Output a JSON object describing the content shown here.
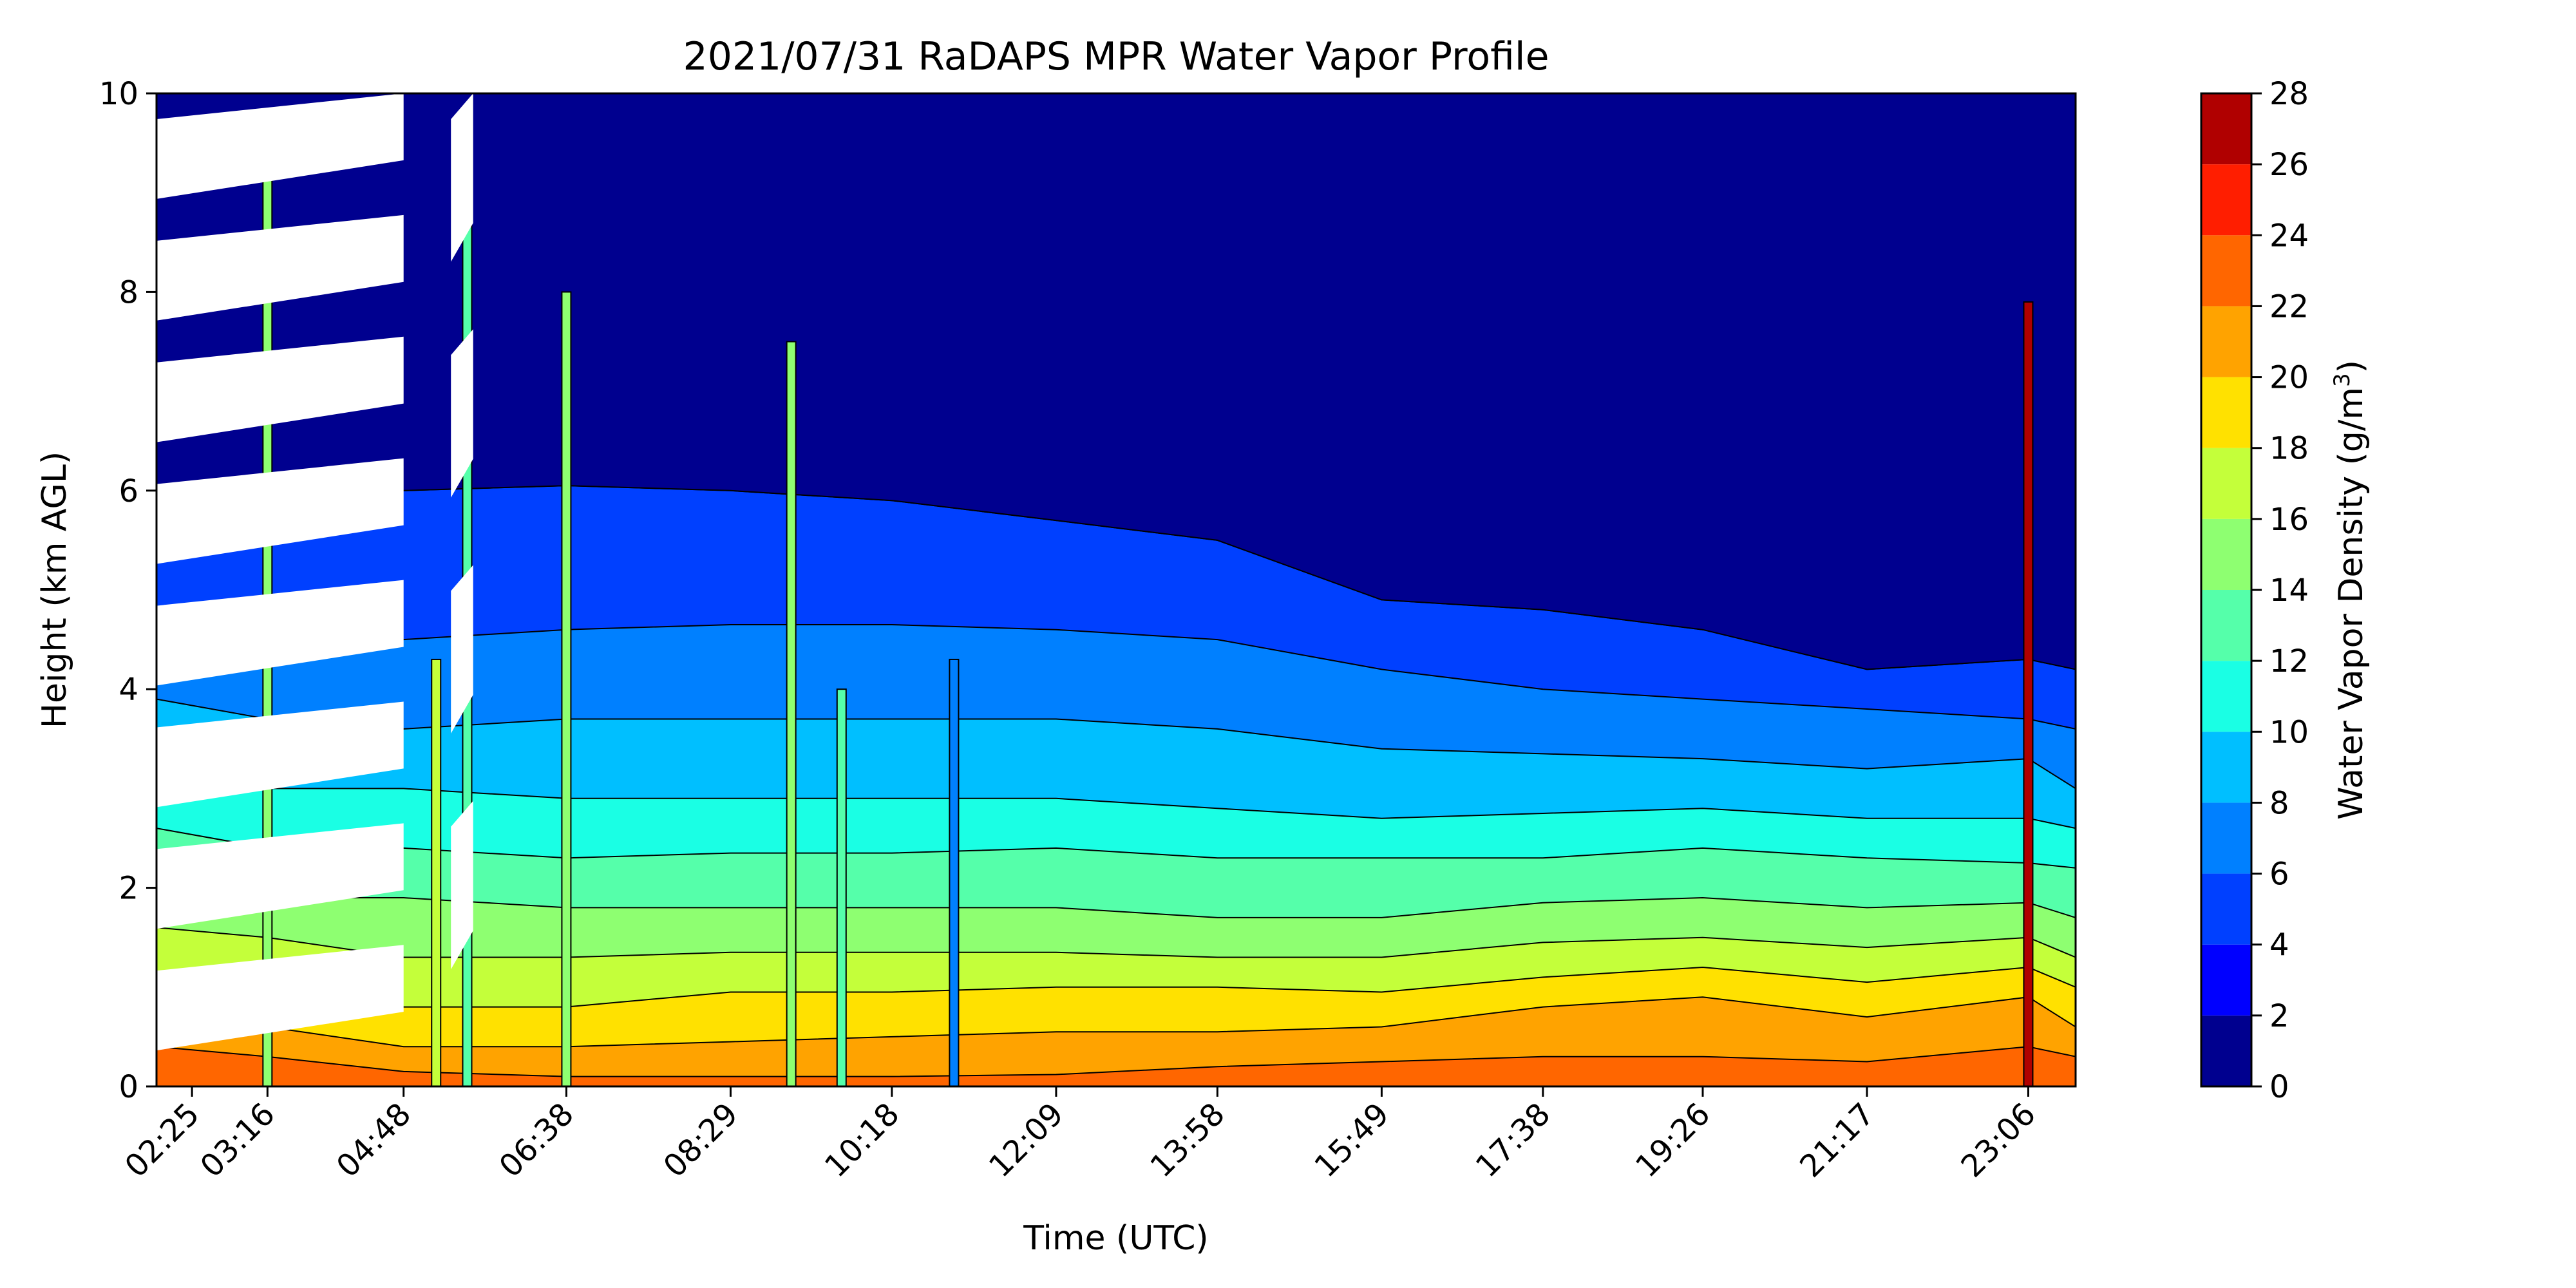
{
  "chart_data": {
    "type": "heatmap",
    "subtype": "filled-contour",
    "title": "2021/07/31 RaDAPS MPR Water Vapor Profile",
    "xlabel": "Time (UTC)",
    "ylabel": "Height (km AGL)",
    "ylim": [
      0,
      10
    ],
    "xlim": [
      "02:01",
      "23:38"
    ],
    "x_ticks": [
      "02:25",
      "03:16",
      "04:48",
      "06:38",
      "08:29",
      "10:18",
      "12:09",
      "13:58",
      "15:49",
      "17:38",
      "19:26",
      "21:17",
      "23:06"
    ],
    "y_ticks": [
      0,
      2,
      4,
      6,
      8,
      10
    ],
    "grid": false,
    "colorbar": {
      "label": "Water Vapor Density (g/m³)",
      "label_base": "Water Vapor Density (g/m",
      "label_sup": "3",
      "label_end": ")",
      "ticks": [
        0,
        2,
        4,
        6,
        8,
        10,
        12,
        14,
        16,
        18,
        20,
        22,
        24,
        26,
        28
      ],
      "levels": [
        0,
        2,
        4,
        6,
        8,
        10,
        12,
        14,
        16,
        18,
        20,
        22,
        24,
        26,
        28
      ],
      "colors": [
        "#00008f",
        "#0000ff",
        "#0040ff",
        "#0080ff",
        "#00bfff",
        "#1affe4",
        "#55ffaa",
        "#8eff71",
        "#c4ff3a",
        "#ffe100",
        "#ffa300",
        "#ff6600",
        "#ff1e00",
        "#b00000"
      ],
      "position": "right"
    },
    "series": [
      {
        "name": "height_of_density_contours_km",
        "x": [
          "02:25",
          "03:16",
          "04:48",
          "06:38",
          "08:29",
          "10:18",
          "12:09",
          "13:58",
          "15:49",
          "17:38",
          "19:26",
          "21:17",
          "23:06",
          "23:38"
        ],
        "contours": [
          {
            "level": 22,
            "y": [
              0.4,
              0.3,
              0.15,
              0.1,
              0.1,
              0.1,
              0.12,
              0.2,
              0.25,
              0.3,
              0.3,
              0.25,
              0.4,
              0.3
            ]
          },
          {
            "level": 20,
            "y": [
              0.7,
              0.6,
              0.4,
              0.4,
              0.45,
              0.5,
              0.55,
              0.55,
              0.6,
              0.8,
              0.9,
              0.7,
              0.9,
              0.6
            ]
          },
          {
            "level": 18,
            "y": [
              1.1,
              1.0,
              0.8,
              0.8,
              0.95,
              0.95,
              1.0,
              1.0,
              0.95,
              1.1,
              1.2,
              1.05,
              1.2,
              1.0
            ]
          },
          {
            "level": 16,
            "y": [
              1.6,
              1.5,
              1.3,
              1.3,
              1.35,
              1.35,
              1.35,
              1.3,
              1.3,
              1.45,
              1.5,
              1.4,
              1.5,
              1.3
            ]
          },
          {
            "level": 14,
            "y": [
              2.1,
              1.9,
              1.9,
              1.8,
              1.8,
              1.8,
              1.8,
              1.7,
              1.7,
              1.85,
              1.9,
              1.8,
              1.85,
              1.7
            ]
          },
          {
            "level": 12,
            "y": [
              2.6,
              2.4,
              2.4,
              2.3,
              2.35,
              2.35,
              2.4,
              2.3,
              2.3,
              2.3,
              2.4,
              2.3,
              2.25,
              2.2
            ]
          },
          {
            "level": 10,
            "y": [
              3.2,
              3.0,
              3.0,
              2.9,
              2.9,
              2.9,
              2.9,
              2.8,
              2.7,
              2.75,
              2.8,
              2.7,
              2.7,
              2.6
            ]
          },
          {
            "level": 8,
            "y": [
              3.9,
              3.7,
              3.6,
              3.7,
              3.7,
              3.7,
              3.7,
              3.6,
              3.4,
              3.35,
              3.3,
              3.2,
              3.3,
              3.0
            ]
          },
          {
            "level": 6,
            "y": [
              4.7,
              4.6,
              4.5,
              4.6,
              4.65,
              4.65,
              4.6,
              4.5,
              4.2,
              4.0,
              3.9,
              3.8,
              3.7,
              3.6
            ]
          },
          {
            "level": 4,
            "y": [
              6.0,
              6.0,
              6.0,
              6.05,
              6.0,
              5.9,
              5.7,
              5.5,
              4.9,
              4.8,
              4.6,
              4.2,
              4.3,
              4.2
            ]
          }
        ]
      }
    ],
    "spikes": [
      {
        "x": "03:16",
        "top": 9.5,
        "peak": 14
      },
      {
        "x": "05:10",
        "top": 4.3,
        "peak": 16
      },
      {
        "x": "05:31",
        "top": 9.6,
        "peak": 12
      },
      {
        "x": "06:38",
        "top": 8.0,
        "peak": 14
      },
      {
        "x": "09:10",
        "top": 7.5,
        "peak": 14
      },
      {
        "x": "09:44",
        "top": 4.0,
        "peak": 12
      },
      {
        "x": "11:00",
        "top": 4.3,
        "peak": 6
      },
      {
        "x": "23:06",
        "top": 7.9,
        "peak": 26
      }
    ],
    "missing_data_regions": [
      {
        "x": [
          "02:01",
          "04:48"
        ],
        "y": [
          0.2,
          10
        ]
      },
      {
        "x": [
          "05:20",
          "05:35"
        ],
        "y": [
          0.5,
          10
        ]
      }
    ]
  }
}
